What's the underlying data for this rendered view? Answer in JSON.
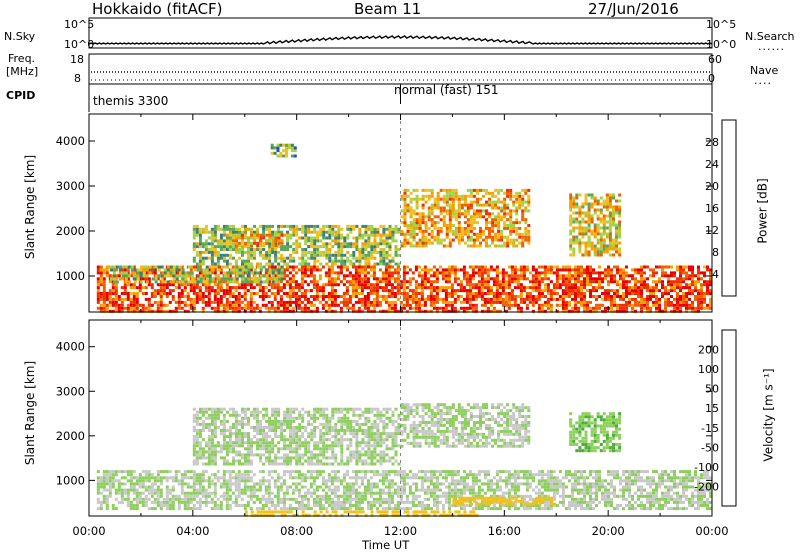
{
  "header": {
    "station": "Hokkaido (fitACF)",
    "beam": "Beam 11",
    "date": "27/Jun/2016"
  },
  "top_panels": {
    "nsky": {
      "label": "N.Sky",
      "tick_top": "10^5",
      "tick_bottom": "10^0"
    },
    "nsearch": {
      "label": "N.Search",
      "tick_top": "10^5",
      "tick_bottom": "10^0",
      "marker": "......"
    },
    "freq": {
      "label_line1": "Freq.",
      "label_line2": "[MHz]",
      "tick_top": "18",
      "tick_bottom": "8"
    },
    "nave": {
      "label": "Nave",
      "tick_top": "60",
      "tick_bottom": "0",
      "marker": "...."
    },
    "cpid": {
      "label": "CPID",
      "modes": [
        "themis 3300",
        "normal (fast) 151"
      ]
    }
  },
  "colors": {
    "power_scale": [
      "#0000ff",
      "#2a4fa8",
      "#3f7f6f",
      "#5aa55a",
      "#9ed34a",
      "#f0c020",
      "#f5a000",
      "#f06000",
      "#f03000",
      "#e80000"
    ],
    "velocity_scale": [
      "#1a2fa0",
      "#2a4fa8",
      "#2e7a5a",
      "#4cae3a",
      "#8ccf5a",
      "#c8c8c8",
      "#f0c020",
      "#f59a00",
      "#f05a00",
      "#e80000"
    ]
  },
  "chart_data": [
    {
      "type": "heatmap",
      "title": "",
      "xlabel": "Time UT",
      "ylabel": "Slant Range [km]",
      "x_ticks": [
        "00:00",
        "04:00",
        "08:00",
        "12:00",
        "16:00",
        "20:00",
        "00:00"
      ],
      "y_ticks": [
        "1000",
        "2000",
        "3000",
        "4000"
      ],
      "ylim": [
        200,
        4600
      ],
      "colorbar": {
        "label": "Power [dB]",
        "ticks": [
          "4",
          "8",
          "12",
          "16",
          "20",
          "24",
          "28"
        ],
        "range": [
          0,
          32
        ]
      },
      "regions": [
        {
          "t0": 0.3,
          "t1": 24,
          "r0": 250,
          "r1": 1300,
          "level": 26
        },
        {
          "t0": 0.8,
          "t1": 7.5,
          "r0": 900,
          "r1": 1300,
          "level": 14
        },
        {
          "t0": 4,
          "t1": 12,
          "r0": 1300,
          "r1": 2200,
          "level": 14
        },
        {
          "t0": 5.5,
          "t1": 7.5,
          "r0": 1700,
          "r1": 2000,
          "level": 20
        },
        {
          "t0": 12,
          "t1": 17,
          "r0": 1700,
          "r1": 3000,
          "level": 20
        },
        {
          "t0": 18.5,
          "t1": 20.5,
          "r0": 1500,
          "r1": 2900,
          "level": 18
        },
        {
          "t0": 7,
          "t1": 8,
          "r0": 3700,
          "r1": 4000,
          "level": 12
        }
      ]
    },
    {
      "type": "heatmap",
      "title": "",
      "xlabel": "Time UT",
      "ylabel": "Slant Range [km]",
      "x_ticks": [
        "00:00",
        "04:00",
        "08:00",
        "12:00",
        "16:00",
        "20:00",
        "00:00"
      ],
      "y_ticks": [
        "1000",
        "2000",
        "3000",
        "4000"
      ],
      "ylim": [
        200,
        4600
      ],
      "colorbar": {
        "label": "Velocity [m s⁻¹]",
        "ticks": [
          "200",
          "100",
          "50",
          "15",
          "-15",
          "-50",
          "-100",
          "-200"
        ],
        "range": [
          -250,
          250
        ]
      },
      "regions": [
        {
          "t0": 0.3,
          "t1": 24,
          "r0": 400,
          "r1": 1300,
          "level": 0
        },
        {
          "t0": 4,
          "t1": 12,
          "r0": 1400,
          "r1": 2700,
          "level": 0
        },
        {
          "t0": 12,
          "t1": 17,
          "r0": 1800,
          "r1": 2800,
          "level": 0
        },
        {
          "t0": 18.5,
          "t1": 20.5,
          "r0": 1700,
          "r1": 2600,
          "level": 40
        },
        {
          "t0": 6,
          "t1": 15,
          "r0": 250,
          "r1": 400,
          "level": -70
        },
        {
          "t0": 14,
          "t1": 18,
          "r0": 500,
          "r1": 700,
          "level": -80
        }
      ]
    }
  ]
}
